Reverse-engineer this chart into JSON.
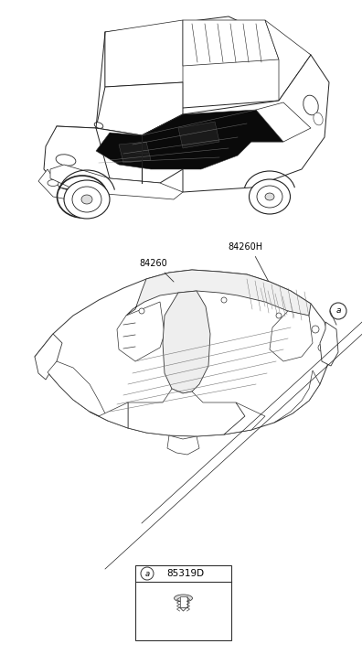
{
  "background_color": "#ffffff",
  "label_84260H": "84260H",
  "label_84260": "84260",
  "label_a_circle": "a",
  "label_85319D": "85319D",
  "fig_width": 3.96,
  "fig_height": 7.27,
  "dpi": 100
}
